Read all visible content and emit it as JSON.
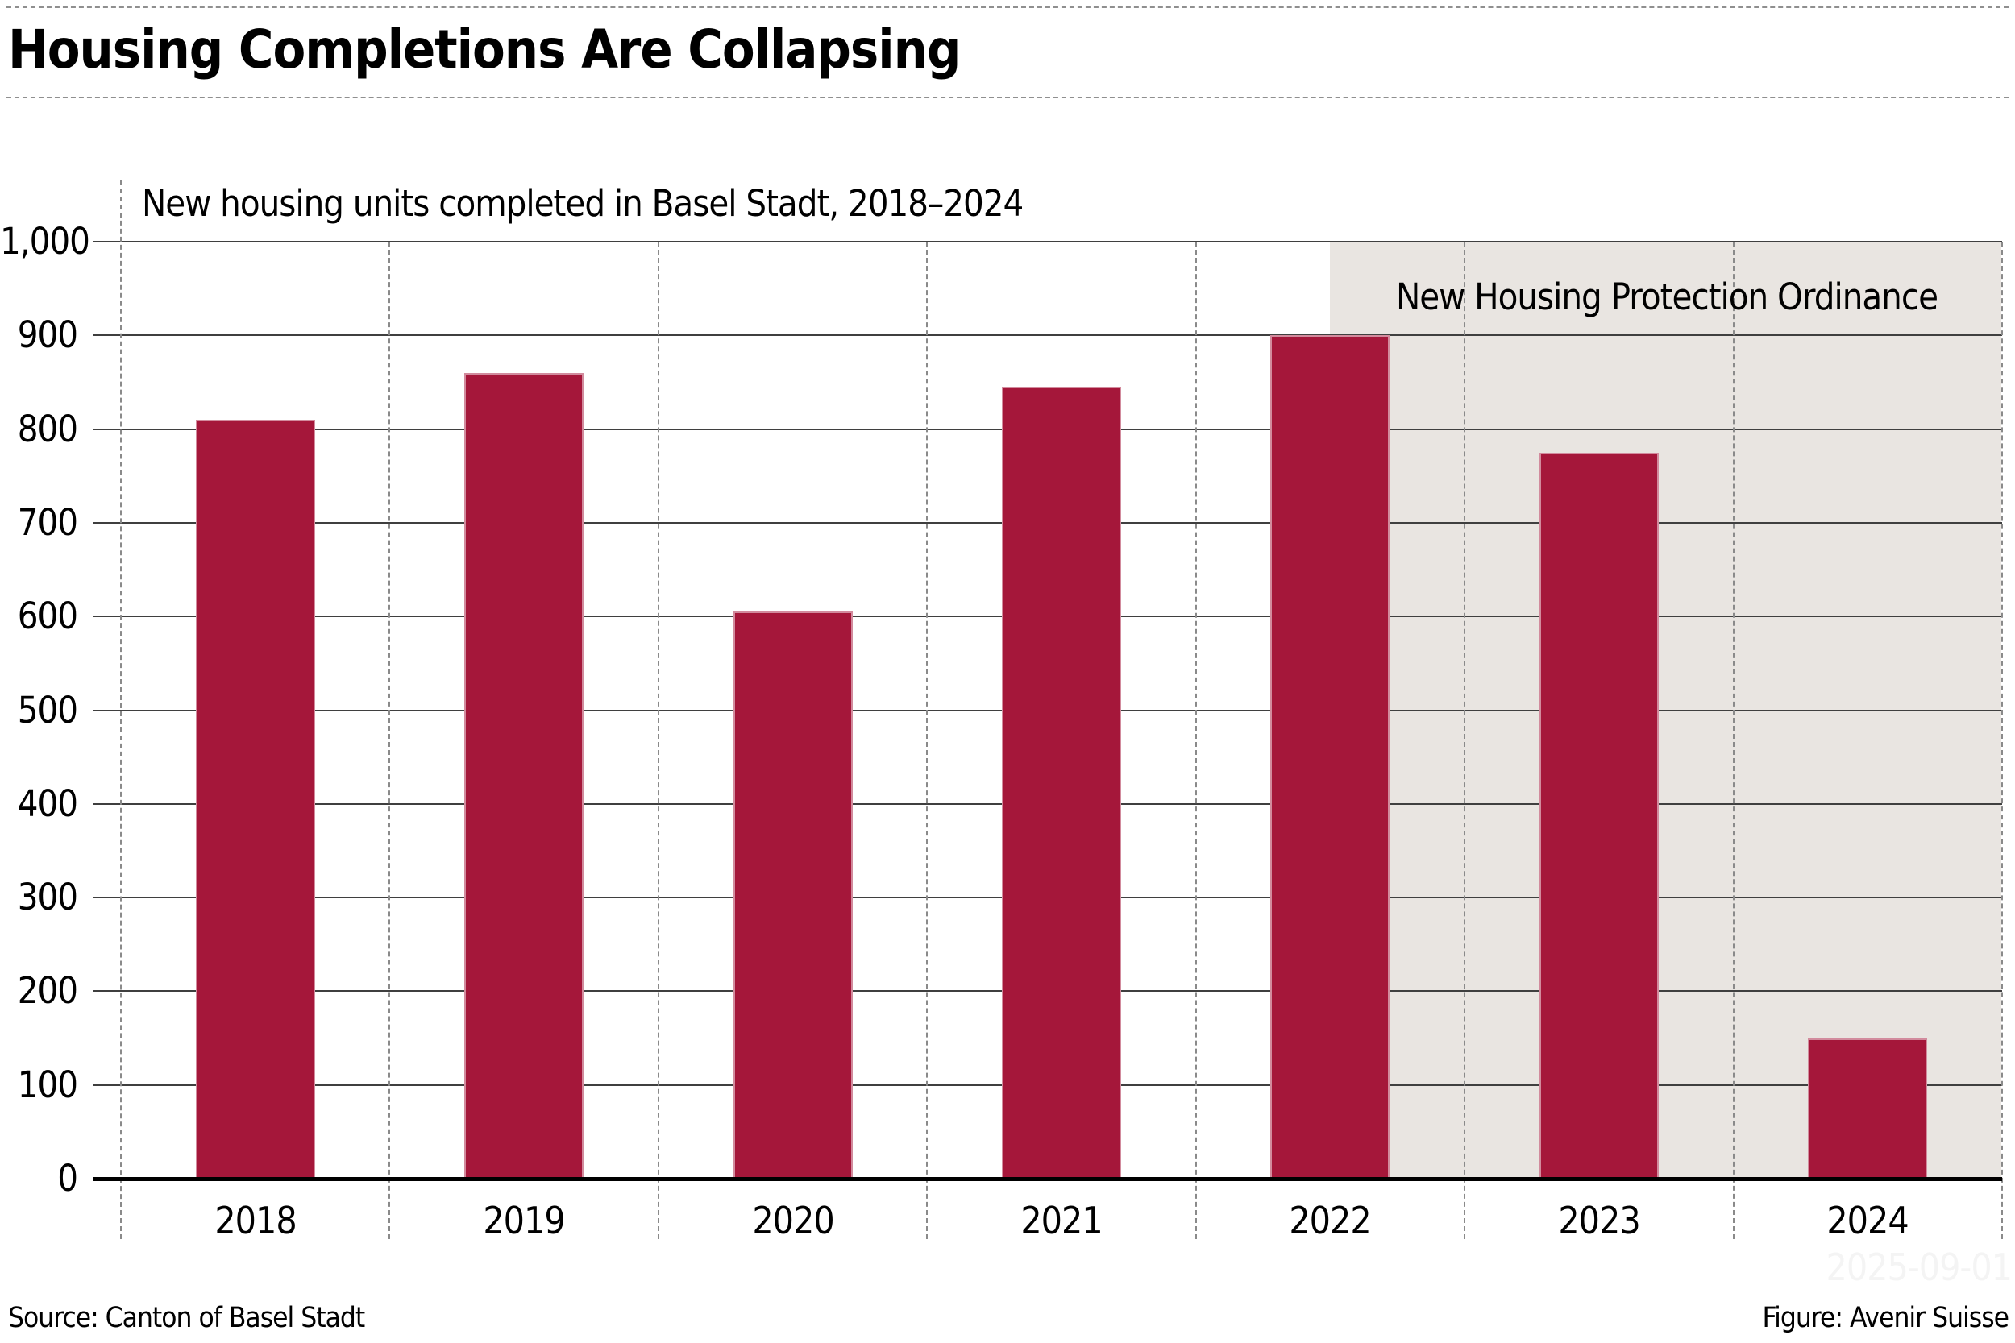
{
  "header": {
    "title": "Housing Completions Are Collapsing"
  },
  "chart_data": {
    "type": "bar",
    "title": "New housing units completed in Basel Stadt, 2018–2024",
    "categories": [
      "2018",
      "2019",
      "2020",
      "2021",
      "2022",
      "2023",
      "2024"
    ],
    "values": [
      810,
      860,
      605,
      845,
      900,
      775,
      150
    ],
    "xlabel": "",
    "ylabel": "",
    "ylim": [
      0,
      1000
    ],
    "ytick_step": 100,
    "ytick_labels": [
      "0",
      "100",
      "200",
      "300",
      "400",
      "500",
      "600",
      "700",
      "800",
      "900",
      "1,000"
    ],
    "grid": "horizontal solid lines every 100; dashed vertical separators between year categories",
    "legend_position": "none",
    "bar_color": "#a5173a",
    "annotation": {
      "label": "New Housing Protection Ordinance",
      "starts_at_category": "2022",
      "background": "#e9e5e1"
    }
  },
  "footer": {
    "source": "Source: Canton of Basel Stadt",
    "figure": "Figure: Avenir Suisse"
  },
  "watermark": "2025-09-01"
}
